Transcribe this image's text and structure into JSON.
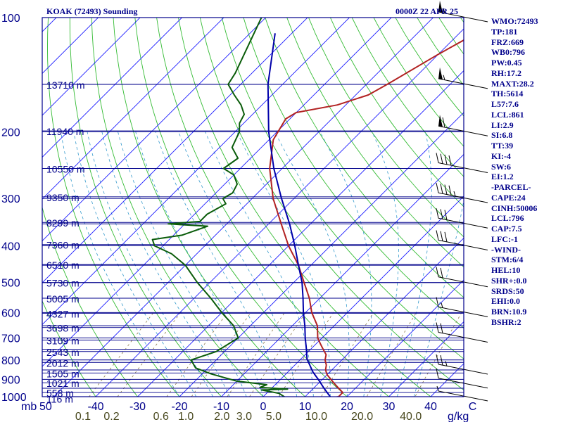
{
  "header": {
    "title_left": "KOAK (72493) Sounding",
    "title_right": "0000Z 22 APR 25"
  },
  "indices": [
    "WMO:72493",
    "TP:181",
    "FRZ:669",
    "WB0:796",
    "PW:0.45",
    "RH:17.2",
    "MAXT:28.2",
    "TH:5614",
    "L57:7.6",
    "LCL:861",
    "LI:2.9",
    "SI:6.8",
    "TT:39",
    "KI:-4",
    "SW:6",
    "EI:1.2",
    "-PARCEL-",
    "CAPE:24",
    "CINH:50006",
    "LCL:796",
    "CAP:7.5",
    "LFC:-1",
    "-WIND-",
    "STM:6/4",
    "HEL:10",
    "SHR+:0.0",
    "SRDS:50",
    "EHI:0.0",
    "BRN:10.9",
    "BSHR:2"
  ],
  "colors": {
    "isobar": "#00008b",
    "isotherm": "#1a1aff",
    "dry_adiabat": "#33bb33",
    "moist_adiabat": "#3399cc",
    "mixing_ratio": "#8c7a4a",
    "temperature": "#b22222",
    "dewpoint": "#0a5c0a",
    "parcel": "#0000aa",
    "label": "#4a4a20",
    "background": "#ffffff",
    "frame": "#00008b"
  },
  "chart_data": {
    "type": "skew-t",
    "title": "KOAK (72493) Sounding",
    "subtitle": "0000Z 22 APR 25",
    "y_axis": {
      "label": "mb",
      "scale": "log",
      "range": [
        1000,
        100
      ],
      "ticks": [
        100,
        200,
        300,
        400,
        500,
        600,
        700,
        800,
        900,
        1000
      ]
    },
    "x_axis": {
      "unit": "°C",
      "ticks": [
        "50",
        "-40",
        "-30",
        "-20",
        "-10",
        "0",
        "10",
        "20",
        "30",
        "40",
        "C"
      ],
      "tick_values": [
        -50,
        -40,
        -30,
        -20,
        -10,
        0,
        10,
        20,
        30,
        40,
        50
      ]
    },
    "mixing_ratio_axis": {
      "unit": "g/kg",
      "labels": [
        "0.1",
        "0.2",
        "0.6",
        "1.0",
        "2.0",
        "3.0",
        "5.0",
        "10.0",
        "20.0",
        "40.0"
      ],
      "values": [
        0.1,
        0.2,
        0.6,
        1.0,
        2.0,
        3.0,
        5.0,
        10.0,
        20.0,
        40.0
      ]
    },
    "heights": [
      {
        "p": 150,
        "label": "13710 m"
      },
      {
        "p": 199,
        "label": "11940 m"
      },
      {
        "p": 250,
        "label": "10550 m"
      },
      {
        "p": 297,
        "label": "9350 m"
      },
      {
        "p": 347,
        "label": "8299 m"
      },
      {
        "p": 397,
        "label": "7360 m"
      },
      {
        "p": 448,
        "label": "6510 m"
      },
      {
        "p": 500,
        "label": "5730 m"
      },
      {
        "p": 550,
        "label": "5005 m"
      },
      {
        "p": 603,
        "label": "4327 m"
      },
      {
        "p": 657,
        "label": "3698 m"
      },
      {
        "p": 709,
        "label": "3109 m"
      },
      {
        "p": 760,
        "label": "2543 m"
      },
      {
        "p": 812,
        "label": "2012 m"
      },
      {
        "p": 866,
        "label": "1505 m"
      },
      {
        "p": 919,
        "label": "1021 m"
      },
      {
        "p": 975,
        "label": "558 m"
      },
      {
        "p": 1010,
        "label": "116 m"
      }
    ],
    "series": [
      {
        "key": "temperature",
        "points": [
          [
            1010,
            16
          ],
          [
            1000,
            18
          ],
          [
            975,
            18
          ],
          [
            950,
            16
          ],
          [
            925,
            14
          ],
          [
            900,
            12
          ],
          [
            875,
            10
          ],
          [
            850,
            8.5
          ],
          [
            825,
            7.5
          ],
          [
            800,
            6
          ],
          [
            775,
            5
          ],
          [
            750,
            3
          ],
          [
            725,
            1
          ],
          [
            700,
            -1
          ],
          [
            650,
            -4
          ],
          [
            600,
            -8.5
          ],
          [
            550,
            -12.5
          ],
          [
            500,
            -17.5
          ],
          [
            450,
            -23
          ],
          [
            400,
            -30
          ],
          [
            350,
            -37
          ],
          [
            300,
            -45
          ],
          [
            250,
            -53
          ],
          [
            210,
            -59
          ],
          [
            185,
            -61
          ],
          [
            178,
            -60
          ],
          [
            170,
            -52
          ],
          [
            160,
            -47
          ],
          [
            150,
            -45
          ],
          [
            125,
            -40
          ],
          [
            100,
            -33
          ]
        ]
      },
      {
        "key": "dewpoint",
        "points": [
          [
            1010,
            6
          ],
          [
            980,
            3
          ],
          [
            960,
            -2
          ],
          [
            955,
            4
          ],
          [
            945,
            -3
          ],
          [
            930,
            -2
          ],
          [
            910,
            -10
          ],
          [
            890,
            -14
          ],
          [
            870,
            -18
          ],
          [
            840,
            -23
          ],
          [
            800,
            -26
          ],
          [
            760,
            -22
          ],
          [
            700,
            -20
          ],
          [
            650,
            -24
          ],
          [
            600,
            -30
          ],
          [
            550,
            -36
          ],
          [
            500,
            -43
          ],
          [
            450,
            -50
          ],
          [
            420,
            -56
          ],
          [
            400,
            -62
          ],
          [
            385,
            -64
          ],
          [
            375,
            -58
          ],
          [
            355,
            -54
          ],
          [
            350,
            -64
          ],
          [
            345,
            -57
          ],
          [
            330,
            -57
          ],
          [
            310,
            -55
          ],
          [
            300,
            -57
          ],
          [
            290,
            -56
          ],
          [
            275,
            -57
          ],
          [
            260,
            -60
          ],
          [
            250,
            -64
          ],
          [
            235,
            -63
          ],
          [
            220,
            -67
          ],
          [
            200,
            -69
          ],
          [
            190,
            -71
          ],
          [
            180,
            -72
          ],
          [
            170,
            -75
          ],
          [
            160,
            -79
          ],
          [
            150,
            -83
          ],
          [
            140,
            -84
          ],
          [
            100,
            -91
          ]
        ]
      },
      {
        "key": "parcel",
        "points": [
          [
            1000,
            16
          ],
          [
            950,
            12.5
          ],
          [
            900,
            9
          ],
          [
            861,
            6
          ],
          [
            796,
            1.5
          ],
          [
            750,
            -1
          ],
          [
            700,
            -4
          ],
          [
            650,
            -7
          ],
          [
            600,
            -10.5
          ],
          [
            550,
            -14
          ],
          [
            500,
            -18
          ],
          [
            450,
            -23
          ],
          [
            400,
            -28.5
          ],
          [
            350,
            -35
          ],
          [
            300,
            -43
          ],
          [
            250,
            -52
          ],
          [
            200,
            -62
          ],
          [
            150,
            -73.5
          ],
          [
            110,
            -84
          ]
        ]
      }
    ],
    "wind_barbs": [
      {
        "p": 1000,
        "kt": 5
      },
      {
        "p": 925,
        "kt": 10
      },
      {
        "p": 850,
        "kt": 25
      },
      {
        "p": 700,
        "kt": 20
      },
      {
        "p": 600,
        "kt": 15
      },
      {
        "p": 500,
        "kt": 20
      },
      {
        "p": 400,
        "kt": 30
      },
      {
        "p": 350,
        "kt": 30
      },
      {
        "p": 300,
        "kt": 45
      },
      {
        "p": 250,
        "kt": 40
      },
      {
        "p": 200,
        "kt": 60
      },
      {
        "p": 150,
        "kt": 55
      },
      {
        "p": 100,
        "kt": 55
      }
    ]
  }
}
